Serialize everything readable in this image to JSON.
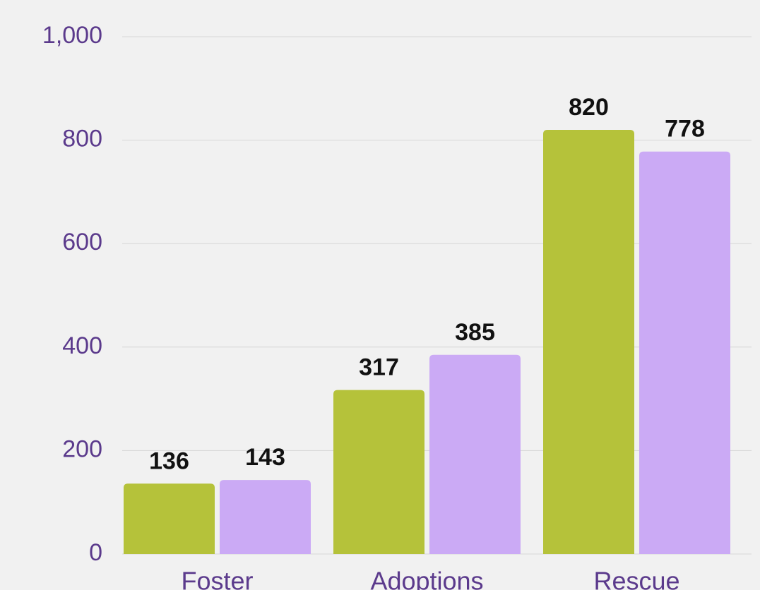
{
  "chart_data": {
    "type": "bar",
    "categories": [
      "Foster",
      "Adoptions",
      "Rescue"
    ],
    "series": [
      {
        "color": "#b5c23a",
        "values": [
          136,
          317,
          820
        ]
      },
      {
        "color": "#cbaaf5",
        "values": [
          143,
          385,
          778
        ]
      }
    ],
    "ylim": [
      0,
      1000
    ],
    "yticks": [
      0,
      200,
      400,
      600,
      800,
      {
        "value": 1000,
        "label": "1,000"
      }
    ],
    "grid": true
  }
}
